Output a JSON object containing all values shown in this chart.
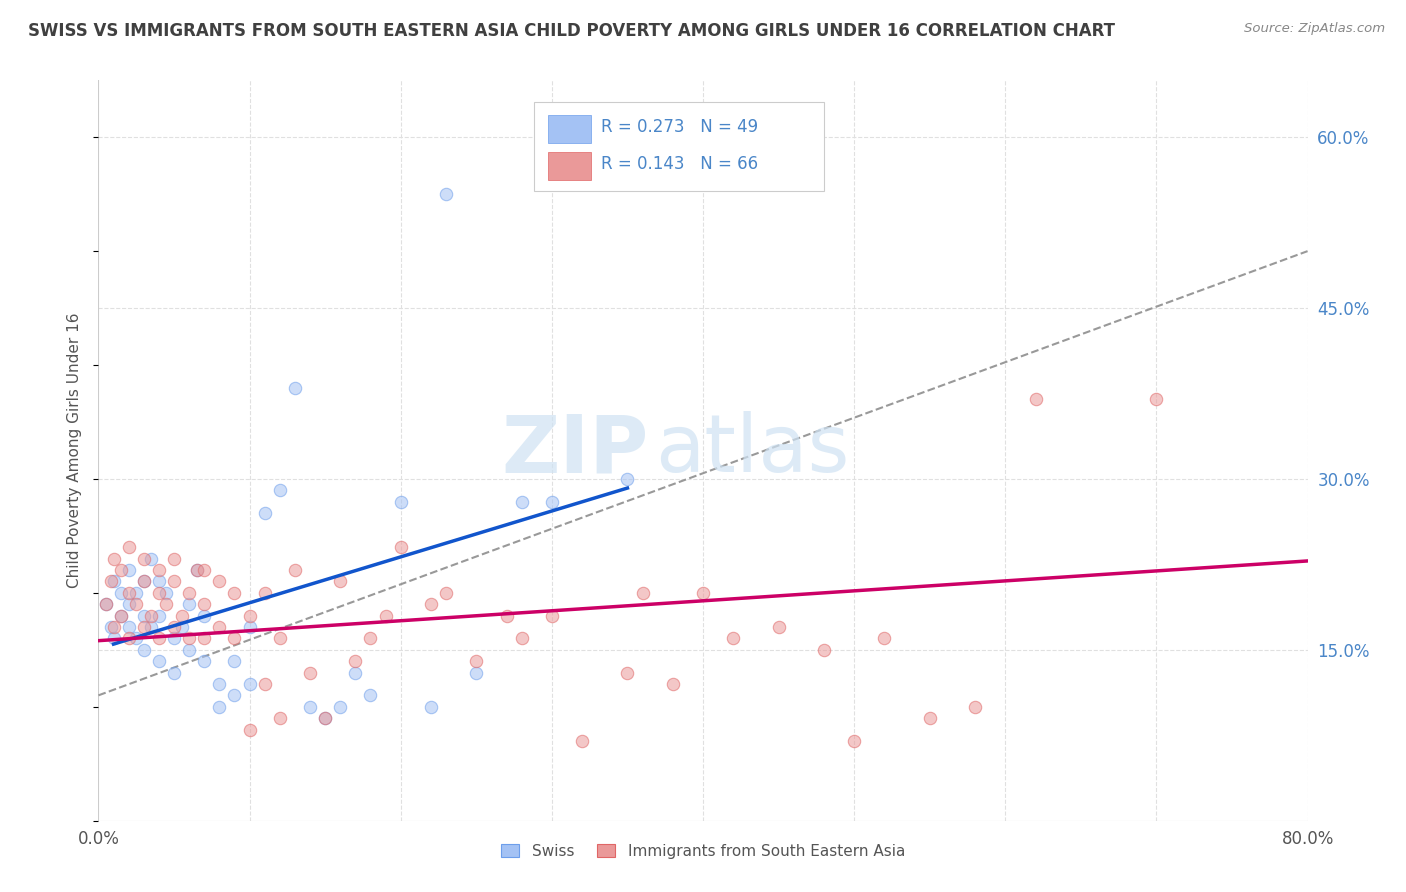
{
  "title": "SWISS VS IMMIGRANTS FROM SOUTH EASTERN ASIA CHILD POVERTY AMONG GIRLS UNDER 16 CORRELATION CHART",
  "source": "Source: ZipAtlas.com",
  "ylabel": "Child Poverty Among Girls Under 16",
  "xlim": [
    0.0,
    0.8
  ],
  "ylim": [
    0.0,
    0.65
  ],
  "xtick_positions": [
    0.0,
    0.1,
    0.2,
    0.3,
    0.4,
    0.5,
    0.6,
    0.7,
    0.8
  ],
  "xticklabels": [
    "0.0%",
    "",
    "",
    "",
    "",
    "",
    "",
    "",
    "80.0%"
  ],
  "yticks_right": [
    0.15,
    0.3,
    0.45,
    0.6
  ],
  "ytick_right_labels": [
    "15.0%",
    "30.0%",
    "45.0%",
    "60.0%"
  ],
  "watermark_zip": "ZIP",
  "watermark_atlas": "atlas",
  "blue_color": "#a4c2f4",
  "pink_color": "#ea9999",
  "blue_dot_edge": "#6d9eeb",
  "pink_dot_edge": "#e06666",
  "blue_line_color": "#1155cc",
  "pink_line_color": "#cc0066",
  "dashed_line_color": "#999999",
  "legend_R_blue": "0.273",
  "legend_N_blue": "49",
  "legend_R_pink": "0.143",
  "legend_N_pink": "66",
  "legend_label_blue": "Swiss",
  "legend_label_pink": "Immigrants from South Eastern Asia",
  "blue_scatter_x": [
    0.005,
    0.008,
    0.01,
    0.01,
    0.015,
    0.015,
    0.02,
    0.02,
    0.02,
    0.025,
    0.025,
    0.03,
    0.03,
    0.03,
    0.035,
    0.035,
    0.04,
    0.04,
    0.04,
    0.045,
    0.05,
    0.05,
    0.055,
    0.06,
    0.06,
    0.065,
    0.07,
    0.07,
    0.08,
    0.08,
    0.09,
    0.09,
    0.1,
    0.1,
    0.11,
    0.12,
    0.13,
    0.14,
    0.15,
    0.16,
    0.17,
    0.18,
    0.2,
    0.22,
    0.23,
    0.25,
    0.28,
    0.3,
    0.35
  ],
  "blue_scatter_y": [
    0.19,
    0.17,
    0.21,
    0.16,
    0.18,
    0.2,
    0.17,
    0.19,
    0.22,
    0.16,
    0.2,
    0.15,
    0.18,
    0.21,
    0.17,
    0.23,
    0.14,
    0.18,
    0.21,
    0.2,
    0.13,
    0.16,
    0.17,
    0.15,
    0.19,
    0.22,
    0.14,
    0.18,
    0.1,
    0.12,
    0.11,
    0.14,
    0.12,
    0.17,
    0.27,
    0.29,
    0.38,
    0.1,
    0.09,
    0.1,
    0.13,
    0.11,
    0.28,
    0.1,
    0.55,
    0.13,
    0.28,
    0.28,
    0.3
  ],
  "pink_scatter_x": [
    0.005,
    0.008,
    0.01,
    0.01,
    0.015,
    0.015,
    0.02,
    0.02,
    0.02,
    0.025,
    0.03,
    0.03,
    0.03,
    0.035,
    0.04,
    0.04,
    0.04,
    0.045,
    0.05,
    0.05,
    0.05,
    0.055,
    0.06,
    0.06,
    0.065,
    0.07,
    0.07,
    0.07,
    0.08,
    0.08,
    0.09,
    0.09,
    0.1,
    0.1,
    0.11,
    0.11,
    0.12,
    0.12,
    0.13,
    0.14,
    0.15,
    0.16,
    0.17,
    0.18,
    0.19,
    0.2,
    0.22,
    0.23,
    0.25,
    0.27,
    0.28,
    0.3,
    0.32,
    0.35,
    0.36,
    0.38,
    0.4,
    0.42,
    0.45,
    0.48,
    0.5,
    0.52,
    0.55,
    0.58,
    0.62,
    0.7
  ],
  "pink_scatter_y": [
    0.19,
    0.21,
    0.17,
    0.23,
    0.18,
    0.22,
    0.16,
    0.2,
    0.24,
    0.19,
    0.17,
    0.21,
    0.23,
    0.18,
    0.16,
    0.2,
    0.22,
    0.19,
    0.17,
    0.21,
    0.23,
    0.18,
    0.16,
    0.2,
    0.22,
    0.16,
    0.19,
    0.22,
    0.17,
    0.21,
    0.16,
    0.2,
    0.08,
    0.18,
    0.12,
    0.2,
    0.09,
    0.16,
    0.22,
    0.13,
    0.09,
    0.21,
    0.14,
    0.16,
    0.18,
    0.24,
    0.19,
    0.2,
    0.14,
    0.18,
    0.16,
    0.18,
    0.07,
    0.13,
    0.2,
    0.12,
    0.2,
    0.16,
    0.17,
    0.15,
    0.07,
    0.16,
    0.09,
    0.1,
    0.37,
    0.37
  ],
  "blue_trendline_x": [
    0.01,
    0.35
  ],
  "blue_trendline_y": [
    0.155,
    0.292
  ],
  "pink_trendline_x": [
    0.0,
    0.8
  ],
  "pink_trendline_y": [
    0.158,
    0.228
  ],
  "dashed_trendline_x": [
    0.0,
    0.8
  ],
  "dashed_trendline_y": [
    0.11,
    0.5
  ],
  "grid_color": "#e0e0e0",
  "bg_color": "#ffffff",
  "title_color": "#404040",
  "right_label_color": "#4a86c8",
  "marker_size": 80,
  "marker_alpha": 0.55
}
